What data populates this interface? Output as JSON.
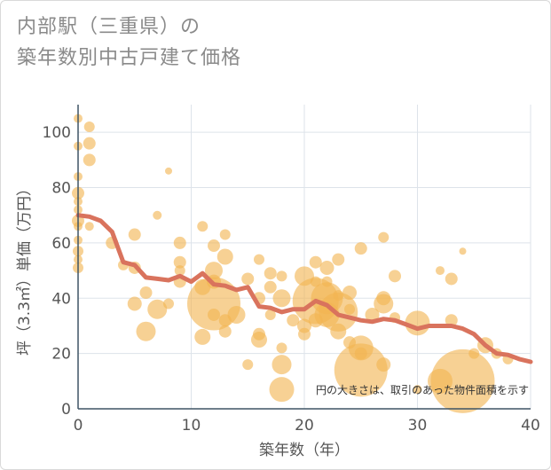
{
  "title_lines": [
    "内部駅（三重県）の",
    "築年数別中古戸建て価格"
  ],
  "chart_data": {
    "type": "scatter",
    "title": "内部駅（三重県）の築年数別中古戸建て価格",
    "xlabel": "築年数（年）",
    "ylabel": "坪（3.3㎡）単価（万円）",
    "xlim": [
      0,
      40
    ],
    "ylim": [
      0,
      110
    ],
    "xticks": [
      0,
      10,
      20,
      30,
      40
    ],
    "yticks": [
      0,
      20,
      40,
      60,
      80,
      100
    ],
    "grid": true,
    "note": "円の大きさは、取引のあった物件面積を示す",
    "colors": {
      "bubble": "#f2b552",
      "line": "#d9735d",
      "grid": "#dde3ea"
    },
    "points": [
      {
        "x": 0,
        "y": 105,
        "r": 5
      },
      {
        "x": 0,
        "y": 95,
        "r": 5
      },
      {
        "x": 0,
        "y": 84,
        "r": 5
      },
      {
        "x": 0,
        "y": 78,
        "r": 7
      },
      {
        "x": 0,
        "y": 75,
        "r": 5
      },
      {
        "x": 0,
        "y": 72,
        "r": 5
      },
      {
        "x": 0,
        "y": 68,
        "r": 7
      },
      {
        "x": 0,
        "y": 66,
        "r": 5
      },
      {
        "x": 0,
        "y": 61,
        "r": 5
      },
      {
        "x": 0,
        "y": 57,
        "r": 6
      },
      {
        "x": 0,
        "y": 54,
        "r": 5
      },
      {
        "x": 0,
        "y": 51,
        "r": 6
      },
      {
        "x": 1,
        "y": 102,
        "r": 6
      },
      {
        "x": 1,
        "y": 96,
        "r": 7
      },
      {
        "x": 1,
        "y": 90,
        "r": 7
      },
      {
        "x": 1,
        "y": 66,
        "r": 5
      },
      {
        "x": 3,
        "y": 60,
        "r": 7
      },
      {
        "x": 4,
        "y": 52,
        "r": 6
      },
      {
        "x": 5,
        "y": 63,
        "r": 7
      },
      {
        "x": 5,
        "y": 51,
        "r": 7
      },
      {
        "x": 5,
        "y": 38,
        "r": 8
      },
      {
        "x": 6,
        "y": 42,
        "r": 7
      },
      {
        "x": 6,
        "y": 28,
        "r": 11
      },
      {
        "x": 7,
        "y": 70,
        "r": 5
      },
      {
        "x": 7,
        "y": 36,
        "r": 11
      },
      {
        "x": 8,
        "y": 86,
        "r": 4
      },
      {
        "x": 8,
        "y": 38,
        "r": 6
      },
      {
        "x": 9,
        "y": 60,
        "r": 7
      },
      {
        "x": 9,
        "y": 53,
        "r": 7
      },
      {
        "x": 9,
        "y": 50,
        "r": 6
      },
      {
        "x": 9,
        "y": 46,
        "r": 7
      },
      {
        "x": 11,
        "y": 66,
        "r": 6
      },
      {
        "x": 11,
        "y": 44,
        "r": 9
      },
      {
        "x": 11,
        "y": 26,
        "r": 9
      },
      {
        "x": 12,
        "y": 59,
        "r": 7
      },
      {
        "x": 12,
        "y": 50,
        "r": 10
      },
      {
        "x": 12,
        "y": 46,
        "r": 8
      },
      {
        "x": 12,
        "y": 38,
        "r": 30
      },
      {
        "x": 12,
        "y": 34,
        "r": 7
      },
      {
        "x": 13,
        "y": 63,
        "r": 6
      },
      {
        "x": 13,
        "y": 55,
        "r": 9
      },
      {
        "x": 13,
        "y": 32,
        "r": 7
      },
      {
        "x": 13,
        "y": 28,
        "r": 7
      },
      {
        "x": 14,
        "y": 34,
        "r": 10
      },
      {
        "x": 15,
        "y": 47,
        "r": 7
      },
      {
        "x": 15,
        "y": 16,
        "r": 6
      },
      {
        "x": 16,
        "y": 54,
        "r": 6
      },
      {
        "x": 16,
        "y": 40,
        "r": 7
      },
      {
        "x": 16,
        "y": 27,
        "r": 7
      },
      {
        "x": 16,
        "y": 25,
        "r": 9
      },
      {
        "x": 17,
        "y": 49,
        "r": 7
      },
      {
        "x": 17,
        "y": 44,
        "r": 7
      },
      {
        "x": 17,
        "y": 34,
        "r": 6
      },
      {
        "x": 18,
        "y": 48,
        "r": 6
      },
      {
        "x": 18,
        "y": 40,
        "r": 10
      },
      {
        "x": 18,
        "y": 22,
        "r": 6
      },
      {
        "x": 18,
        "y": 16,
        "r": 11
      },
      {
        "x": 18,
        "y": 7,
        "r": 14
      },
      {
        "x": 19,
        "y": 32,
        "r": 7
      },
      {
        "x": 20,
        "y": 48,
        "r": 11
      },
      {
        "x": 20,
        "y": 30,
        "r": 8
      },
      {
        "x": 20,
        "y": 27,
        "r": 7
      },
      {
        "x": 21,
        "y": 53,
        "r": 7
      },
      {
        "x": 21,
        "y": 46,
        "r": 6
      },
      {
        "x": 21,
        "y": 39,
        "r": 26
      },
      {
        "x": 21,
        "y": 32,
        "r": 8
      },
      {
        "x": 22,
        "y": 51,
        "r": 8
      },
      {
        "x": 22,
        "y": 46,
        "r": 6
      },
      {
        "x": 22,
        "y": 40,
        "r": 18
      },
      {
        "x": 22,
        "y": 34,
        "r": 14
      },
      {
        "x": 23,
        "y": 54,
        "r": 7
      },
      {
        "x": 23,
        "y": 41,
        "r": 6
      },
      {
        "x": 23,
        "y": 35,
        "r": 22
      },
      {
        "x": 23,
        "y": 28,
        "r": 9
      },
      {
        "x": 24,
        "y": 42,
        "r": 8
      },
      {
        "x": 24,
        "y": 36,
        "r": 6
      },
      {
        "x": 24,
        "y": 24,
        "r": 7
      },
      {
        "x": 25,
        "y": 58,
        "r": 7
      },
      {
        "x": 25,
        "y": 22,
        "r": 14
      },
      {
        "x": 25,
        "y": 14,
        "r": 30
      },
      {
        "x": 25,
        "y": 20,
        "r": 7
      },
      {
        "x": 26,
        "y": 34,
        "r": 8
      },
      {
        "x": 27,
        "y": 62,
        "r": 6
      },
      {
        "x": 27,
        "y": 40,
        "r": 8
      },
      {
        "x": 27,
        "y": 38,
        "r": 11
      },
      {
        "x": 27,
        "y": 16,
        "r": 8
      },
      {
        "x": 28,
        "y": 48,
        "r": 7
      },
      {
        "x": 28,
        "y": 33,
        "r": 6
      },
      {
        "x": 30,
        "y": 7,
        "r": 5
      },
      {
        "x": 30,
        "y": 31,
        "r": 14
      },
      {
        "x": 32,
        "y": 50,
        "r": 5
      },
      {
        "x": 32,
        "y": 10,
        "r": 14
      },
      {
        "x": 33,
        "y": 47,
        "r": 7
      },
      {
        "x": 33,
        "y": 32,
        "r": 7
      },
      {
        "x": 34,
        "y": 57,
        "r": 4
      },
      {
        "x": 34,
        "y": 10,
        "r": 36
      },
      {
        "x": 35,
        "y": 20,
        "r": 6
      },
      {
        "x": 36,
        "y": 23,
        "r": 9
      },
      {
        "x": 37,
        "y": 20,
        "r": 6
      },
      {
        "x": 38,
        "y": 18,
        "r": 6
      }
    ],
    "trend": [
      {
        "x": 0,
        "y": 70
      },
      {
        "x": 1,
        "y": 69.5
      },
      {
        "x": 2,
        "y": 68
      },
      {
        "x": 3,
        "y": 64
      },
      {
        "x": 4,
        "y": 53
      },
      {
        "x": 5,
        "y": 52
      },
      {
        "x": 6,
        "y": 47.5
      },
      {
        "x": 7,
        "y": 47
      },
      {
        "x": 8,
        "y": 46.5
      },
      {
        "x": 9,
        "y": 48
      },
      {
        "x": 10,
        "y": 46
      },
      {
        "x": 11,
        "y": 49
      },
      {
        "x": 12,
        "y": 45
      },
      {
        "x": 13,
        "y": 44.5
      },
      {
        "x": 14,
        "y": 43
      },
      {
        "x": 15,
        "y": 44
      },
      {
        "x": 16,
        "y": 37
      },
      {
        "x": 17,
        "y": 36.5
      },
      {
        "x": 18,
        "y": 35
      },
      {
        "x": 19,
        "y": 36
      },
      {
        "x": 20,
        "y": 36
      },
      {
        "x": 21,
        "y": 39
      },
      {
        "x": 22,
        "y": 37.5
      },
      {
        "x": 23,
        "y": 34
      },
      {
        "x": 24,
        "y": 33
      },
      {
        "x": 25,
        "y": 32
      },
      {
        "x": 26,
        "y": 31.5
      },
      {
        "x": 27,
        "y": 32.5
      },
      {
        "x": 28,
        "y": 32
      },
      {
        "x": 29,
        "y": 30.5
      },
      {
        "x": 30,
        "y": 29
      },
      {
        "x": 31,
        "y": 30
      },
      {
        "x": 32,
        "y": 30
      },
      {
        "x": 33,
        "y": 30
      },
      {
        "x": 34,
        "y": 29
      },
      {
        "x": 35,
        "y": 27
      },
      {
        "x": 36,
        "y": 23
      },
      {
        "x": 37,
        "y": 20
      },
      {
        "x": 38,
        "y": 19.5
      },
      {
        "x": 39,
        "y": 18
      },
      {
        "x": 40,
        "y": 17
      }
    ]
  }
}
